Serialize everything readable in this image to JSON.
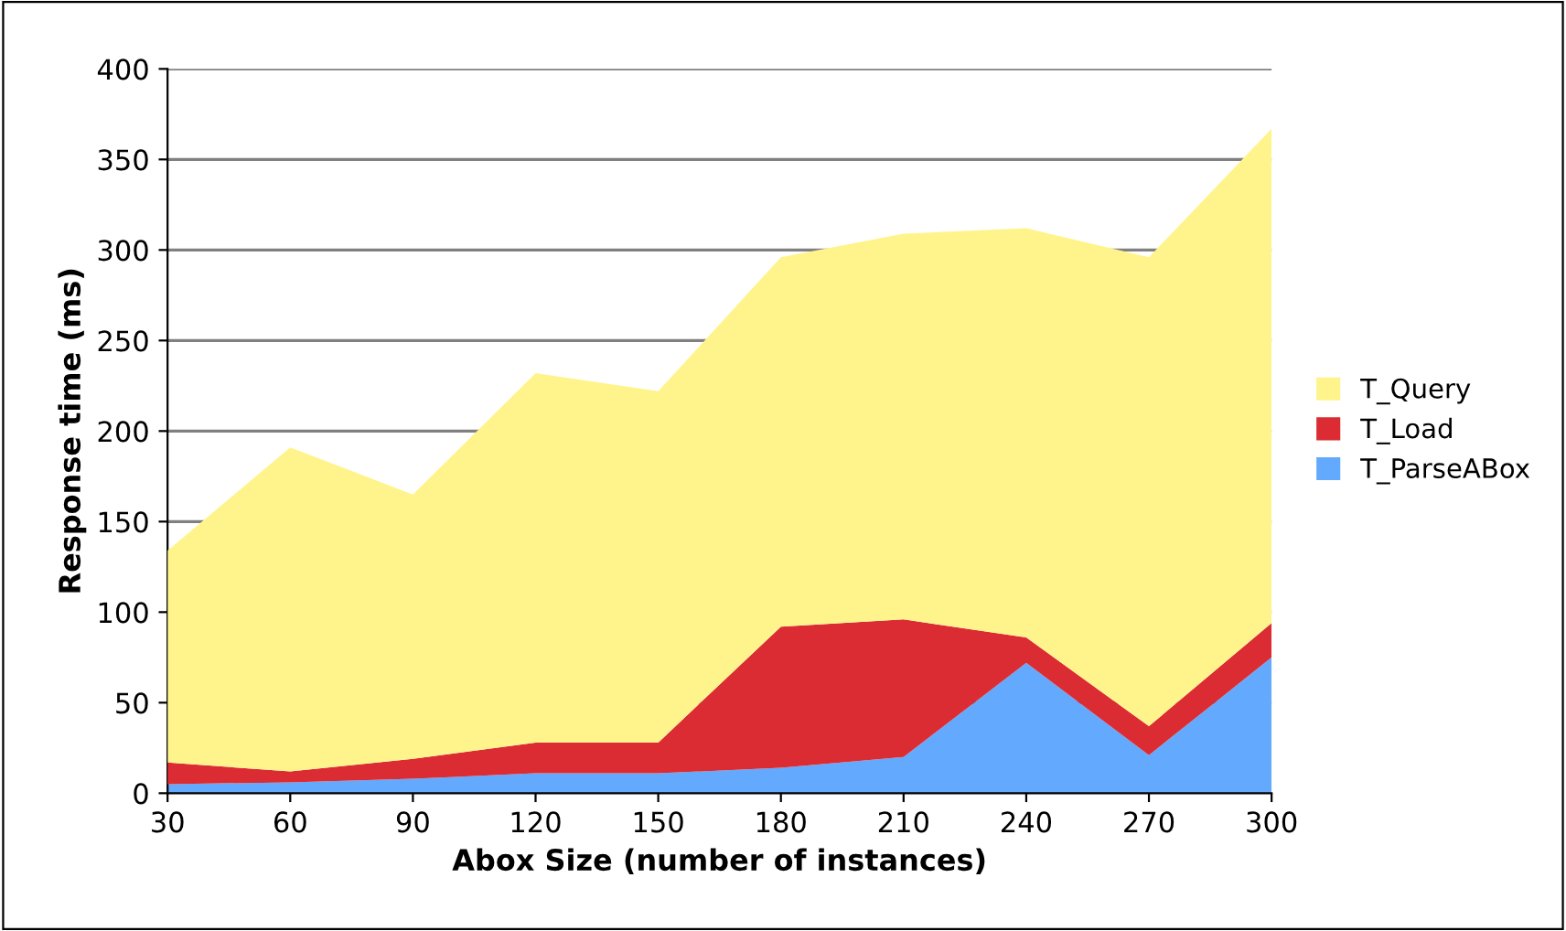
{
  "chart_data": {
    "type": "area",
    "stacked": true,
    "xlabel": "Abox Size (number of instances)",
    "ylabel": "Response time (ms)",
    "x": [
      30,
      60,
      90,
      120,
      150,
      180,
      210,
      240,
      270,
      300
    ],
    "series": [
      {
        "name": "T_ParseABox",
        "color": "#63a9fd",
        "values": [
          5,
          6,
          8,
          11,
          11,
          14,
          20,
          72,
          21,
          75
        ]
      },
      {
        "name": "T_Load",
        "color": "#dc2c33",
        "values": [
          12,
          6,
          11,
          17,
          17,
          78,
          76,
          14,
          16,
          19
        ]
      },
      {
        "name": "T_Query",
        "color": "#fff48c",
        "values": [
          117,
          179,
          146,
          204,
          194,
          204,
          213,
          226,
          259,
          273
        ]
      }
    ],
    "xlim": [
      30,
      300
    ],
    "xticks": [
      30,
      60,
      90,
      120,
      150,
      180,
      210,
      240,
      270,
      300
    ],
    "ylim": [
      0,
      400
    ],
    "yticks": [
      0,
      50,
      100,
      150,
      200,
      250,
      300,
      350,
      400
    ],
    "grid": "y",
    "legend": "right"
  }
}
